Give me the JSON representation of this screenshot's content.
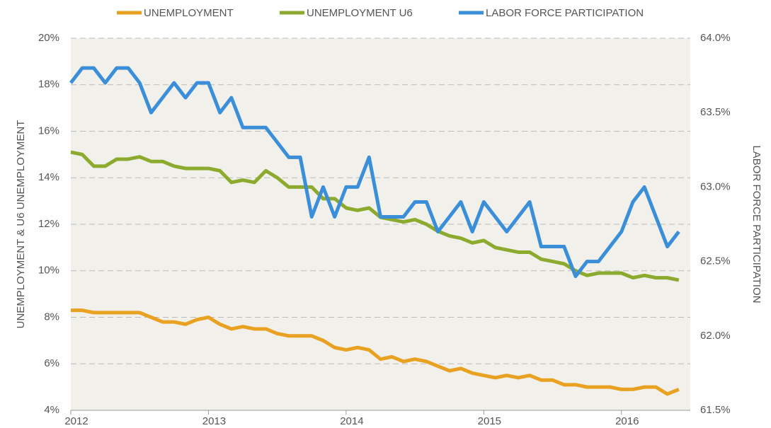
{
  "chart_data": {
    "type": "line",
    "categories": [
      "2012",
      null,
      null,
      null,
      null,
      null,
      null,
      null,
      null,
      null,
      null,
      null,
      "2013",
      null,
      null,
      null,
      null,
      null,
      null,
      null,
      null,
      null,
      null,
      null,
      "2014",
      null,
      null,
      null,
      null,
      null,
      null,
      null,
      null,
      null,
      null,
      null,
      "2015",
      null,
      null,
      null,
      null,
      null,
      null,
      null,
      null,
      null,
      null,
      null,
      "2016",
      null,
      null,
      null,
      null,
      null
    ],
    "series": [
      {
        "name": "UNEMPLOYMENT",
        "color": "#e9a122",
        "values": [
          8.3,
          8.3,
          8.2,
          8.2,
          8.2,
          8.2,
          8.2,
          8.0,
          7.8,
          7.8,
          7.7,
          7.9,
          8.0,
          7.7,
          7.5,
          7.6,
          7.5,
          7.5,
          7.3,
          7.2,
          7.2,
          7.2,
          7.0,
          6.7,
          6.6,
          6.7,
          6.6,
          6.2,
          6.3,
          6.1,
          6.2,
          6.1,
          5.9,
          5.7,
          5.8,
          5.6,
          5.5,
          5.4,
          5.5,
          5.4,
          5.5,
          5.3,
          5.3,
          5.1,
          5.1,
          5.0,
          5.0,
          5.0,
          4.9,
          4.9,
          5.0,
          5.0,
          4.7,
          4.9
        ]
      },
      {
        "name": "UNEMPLOYMENT U6",
        "color": "#8cab2e",
        "values": [
          15.1,
          15.0,
          14.5,
          14.5,
          14.8,
          14.8,
          14.9,
          14.7,
          14.7,
          14.5,
          14.4,
          14.4,
          14.4,
          14.3,
          13.8,
          13.9,
          13.8,
          14.3,
          14.0,
          13.6,
          13.6,
          13.6,
          13.1,
          13.1,
          12.7,
          12.6,
          12.7,
          12.3,
          12.2,
          12.1,
          12.2,
          12.0,
          11.7,
          11.5,
          11.4,
          11.2,
          11.3,
          11.0,
          10.9,
          10.8,
          10.8,
          10.5,
          10.4,
          10.3,
          10.0,
          9.8,
          9.9,
          9.9,
          9.9,
          9.7,
          9.8,
          9.7,
          9.7,
          9.6
        ]
      },
      {
        "name": "LABOR FORCE PARTICIPATION",
        "color": "#3b8fd8",
        "axis": "y2",
        "values": [
          63.7,
          63.8,
          63.8,
          63.7,
          63.8,
          63.8,
          63.7,
          63.5,
          63.6,
          63.7,
          63.6,
          63.7,
          63.7,
          63.5,
          63.6,
          63.4,
          63.4,
          63.4,
          63.3,
          63.2,
          63.2,
          62.8,
          63.0,
          62.8,
          63.0,
          63.0,
          63.2,
          62.8,
          62.8,
          62.8,
          62.9,
          62.9,
          62.7,
          62.8,
          62.9,
          62.7,
          62.9,
          62.8,
          62.7,
          62.8,
          62.9,
          62.6,
          62.6,
          62.6,
          62.4,
          62.5,
          62.5,
          62.6,
          62.7,
          62.9,
          63.0,
          62.8,
          62.6,
          62.7
        ]
      }
    ],
    "ylabel": "UNEMPLOYMENT & U6 UNEMPLOYMENT",
    "y2label": "LABOR FORCE PARTICIPATION",
    "ylim": [
      4,
      20
    ],
    "yticks": [
      {
        "value": 4,
        "label": "4%"
      },
      {
        "value": 6,
        "label": "6%"
      },
      {
        "value": 8,
        "label": "8%"
      },
      {
        "value": 10,
        "label": "10%"
      },
      {
        "value": 12,
        "label": "12%"
      },
      {
        "value": 14,
        "label": "14%"
      },
      {
        "value": 16,
        "label": "16%"
      },
      {
        "value": 18,
        "label": "18%"
      },
      {
        "value": 20,
        "label": "20%"
      }
    ],
    "y2lim": [
      61.5,
      64.0
    ],
    "y2ticks": [
      {
        "value": 61.5,
        "label": "61.5%"
      },
      {
        "value": 62.0,
        "label": "62.0%"
      },
      {
        "value": 62.5,
        "label": "62.5%"
      },
      {
        "value": 63.0,
        "label": "63.0%"
      },
      {
        "value": 63.5,
        "label": "63.5%"
      },
      {
        "value": 64.0,
        "label": "64.0%"
      }
    ],
    "grid": true,
    "legend": "top"
  }
}
